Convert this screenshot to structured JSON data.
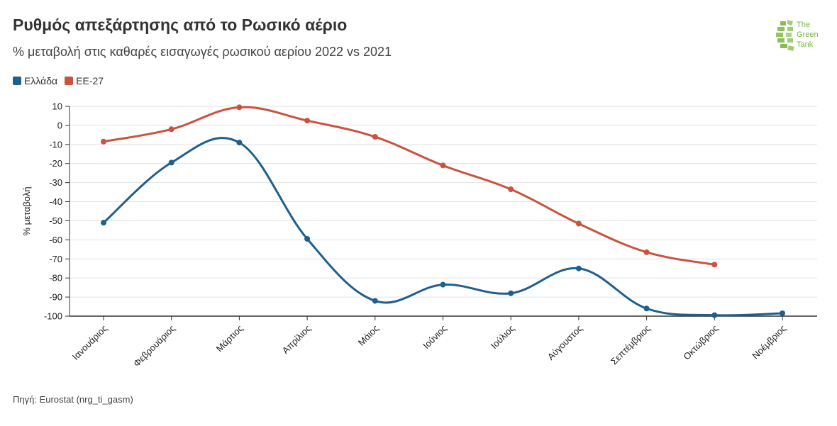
{
  "header": {
    "title": "Ρυθμός απεξάρτησης από το Ρωσικό αέριο",
    "subtitle": "% μεταβολή στις καθαρές εισαγωγές ρωσικού αερίου 2022 vs 2021"
  },
  "logo": {
    "line1": "The",
    "line2": "Green",
    "line3": "Tank",
    "color": "#7ab541"
  },
  "source": "Πηγή: Eurostat (nrg_ti_gasm)",
  "chart_data": {
    "type": "line",
    "title": "Ρυθμός απεξάρτησης από το Ρωσικό αέριο",
    "subtitle": "% μεταβολή στις καθαρές εισαγωγές ρωσικού αερίου 2022 vs 2021",
    "ylabel": "% μεταβολή",
    "xlabel": "",
    "ylim": [
      -100,
      10
    ],
    "yticks": [
      10,
      0,
      -10,
      -20,
      -30,
      -40,
      -50,
      -60,
      -70,
      -80,
      -90,
      -100
    ],
    "grid": true,
    "legend_position": "top-left",
    "categories": [
      "Ιανουάριος",
      "Φεβρουάριος",
      "Μάρτιος",
      "Απρίλιος",
      "Μάιος",
      "Ιούνιος",
      "Ιούλιος",
      "Αύγουστος",
      "Σεπτέμβριος",
      "Οκτώβριος",
      "Νοέμβριος"
    ],
    "series": [
      {
        "name": "Ελλάδα",
        "color": "#1f5f8b",
        "values": [
          -51,
          -19.5,
          -9,
          -59.5,
          -92,
          -83.5,
          -88,
          -75,
          -96,
          -99.5,
          -98.5
        ]
      },
      {
        "name": "ΕΕ-27",
        "color": "#c9533f",
        "values": [
          -8.5,
          -2,
          9.5,
          2.5,
          -6,
          -21,
          -33.5,
          -51.5,
          -66.5,
          -73,
          null
        ]
      }
    ]
  }
}
